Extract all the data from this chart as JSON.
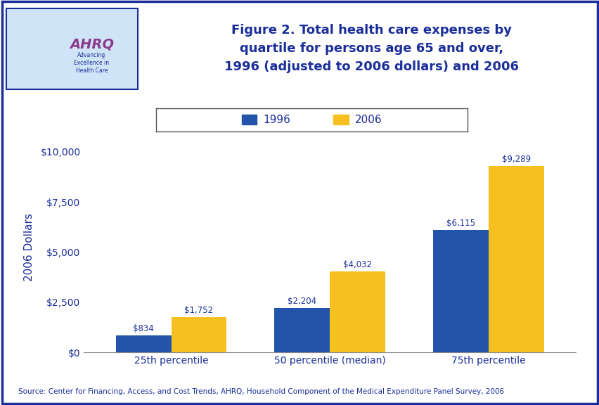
{
  "categories": [
    "25th percentile",
    "50 percentile (median)",
    "75th percentile"
  ],
  "values_1996": [
    834,
    2204,
    6115
  ],
  "values_2006": [
    1752,
    4032,
    9289
  ],
  "labels_1996": [
    "$834",
    "$2,204",
    "$6,115"
  ],
  "labels_2006": [
    "$1,752",
    "$4,032",
    "$9,289"
  ],
  "color_1996": "#2255AA",
  "color_2006": "#F5C020",
  "title_line1": "Figure 2. Total health care expenses by",
  "title_line2": "quartile for persons age 65 and over,",
  "title_line3": "1996 (adjusted to 2006 dollars) and 2006",
  "ylabel": "2006 Dollars",
  "ylim": [
    0,
    10500
  ],
  "yticks": [
    0,
    2500,
    5000,
    7500,
    10000
  ],
  "ytick_labels": [
    "$0",
    "$2,500",
    "$5,000",
    "$7,500",
    "$10,000"
  ],
  "legend_1996": "1996",
  "legend_2006": "2006",
  "source_text": "Source: Center for Financing, Access, and Cost Trends, AHRQ, Household Component of the Medical Expenditure Panel Survey, 2006",
  "bg_color": "#FFFFFF",
  "border_color": "#1A2E99",
  "title_color": "#1A2E99",
  "separator_color": "#1A2E99",
  "bar_width": 0.35
}
